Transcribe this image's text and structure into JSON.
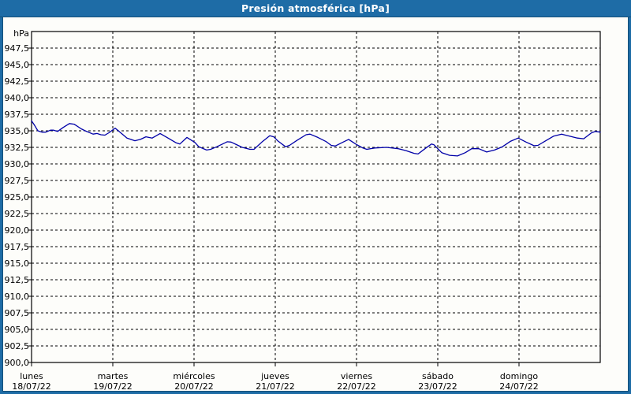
{
  "window": {
    "title": "Presión atmosférica [hPa]"
  },
  "colors": {
    "titlebar_bg": "#1E6CA6",
    "titlebar_text": "#FFFFFF",
    "panel_bg": "#FDFDFA",
    "grid_line": "#000000",
    "series_line": "#0000A8"
  },
  "chart_data": {
    "type": "line",
    "title": "Presión atmosférica [hPa]",
    "xlabel": "",
    "ylabel": "hPa",
    "unit_label": "hPa",
    "grid": "dashed",
    "legend": "none",
    "ylim": [
      900,
      950
    ],
    "y_tick_step": 2.5,
    "y_ticks": [
      {
        "label": "947,5",
        "value": 947.5
      },
      {
        "label": "945,0",
        "value": 945.0
      },
      {
        "label": "942,5",
        "value": 942.5
      },
      {
        "label": "940,0",
        "value": 940.0
      },
      {
        "label": "937,5",
        "value": 937.5
      },
      {
        "label": "935,0",
        "value": 935.0
      },
      {
        "label": "932,5",
        "value": 932.5
      },
      {
        "label": "930,0",
        "value": 930.0
      },
      {
        "label": "927,5",
        "value": 927.5
      },
      {
        "label": "925,0",
        "value": 925.0
      },
      {
        "label": "922,5",
        "value": 922.5
      },
      {
        "label": "920,0",
        "value": 920.0
      },
      {
        "label": "917,5",
        "value": 917.5
      },
      {
        "label": "915,0",
        "value": 915.0
      },
      {
        "label": "912,5",
        "value": 912.5
      },
      {
        "label": "910,0",
        "value": 910.0
      },
      {
        "label": "907,5",
        "value": 907.5
      },
      {
        "label": "905,0",
        "value": 905.0
      },
      {
        "label": "902,5",
        "value": 902.5
      },
      {
        "label": "900,0",
        "value": 900.0
      }
    ],
    "x_range_days": [
      0,
      7
    ],
    "x_ticks": [
      {
        "day": "lunes",
        "date": "18/07/22"
      },
      {
        "day": "martes",
        "date": "19/07/22"
      },
      {
        "day": "miércoles",
        "date": "20/07/22"
      },
      {
        "day": "jueves",
        "date": "21/07/22"
      },
      {
        "day": "viernes",
        "date": "22/07/22"
      },
      {
        "day": "sábado",
        "date": "23/07/22"
      },
      {
        "day": "domingo",
        "date": "24/07/22"
      }
    ],
    "series": [
      {
        "name": "Presión atmosférica",
        "color": "#0000A8",
        "points": [
          [
            0.0,
            936.5
          ],
          [
            0.039,
            935.8
          ],
          [
            0.078,
            935.0
          ],
          [
            0.13,
            934.8
          ],
          [
            0.175,
            934.8
          ],
          [
            0.233,
            935.1
          ],
          [
            0.272,
            935.1
          ],
          [
            0.32,
            934.9
          ],
          [
            0.388,
            935.5
          ],
          [
            0.466,
            936.1
          ],
          [
            0.524,
            936.0
          ],
          [
            0.612,
            935.3
          ],
          [
            0.66,
            935.0
          ],
          [
            0.757,
            934.5
          ],
          [
            0.806,
            934.6
          ],
          [
            0.854,
            934.4
          ],
          [
            0.903,
            934.35
          ],
          [
            0.951,
            934.7
          ],
          [
            1.029,
            935.4
          ],
          [
            1.117,
            934.5
          ],
          [
            1.175,
            933.9
          ],
          [
            1.272,
            933.5
          ],
          [
            1.34,
            933.7
          ],
          [
            1.408,
            934.1
          ],
          [
            1.485,
            933.9
          ],
          [
            1.583,
            934.6
          ],
          [
            1.68,
            933.9
          ],
          [
            1.777,
            933.2
          ],
          [
            1.825,
            933.0
          ],
          [
            1.913,
            934.0
          ],
          [
            2.01,
            933.25
          ],
          [
            2.058,
            932.6
          ],
          [
            2.155,
            932.1
          ],
          [
            2.204,
            932.2
          ],
          [
            2.282,
            932.6
          ],
          [
            2.408,
            933.35
          ],
          [
            2.456,
            933.3
          ],
          [
            2.524,
            932.9
          ],
          [
            2.592,
            932.5
          ],
          [
            2.689,
            932.2
          ],
          [
            2.738,
            932.2
          ],
          [
            2.835,
            933.3
          ],
          [
            2.932,
            934.25
          ],
          [
            2.981,
            934.1
          ],
          [
            3.029,
            933.5
          ],
          [
            3.126,
            932.6
          ],
          [
            3.175,
            932.8
          ],
          [
            3.272,
            933.6
          ],
          [
            3.379,
            934.4
          ],
          [
            3.427,
            934.5
          ],
          [
            3.524,
            934.0
          ],
          [
            3.621,
            933.4
          ],
          [
            3.689,
            932.8
          ],
          [
            3.738,
            932.7
          ],
          [
            3.835,
            933.3
          ],
          [
            3.903,
            933.7
          ],
          [
            3.99,
            933.0
          ],
          [
            4.078,
            932.4
          ],
          [
            4.126,
            932.2
          ],
          [
            4.223,
            932.4
          ],
          [
            4.369,
            932.5
          ],
          [
            4.515,
            932.3
          ],
          [
            4.612,
            932.0
          ],
          [
            4.709,
            931.6
          ],
          [
            4.757,
            931.5
          ],
          [
            4.854,
            932.4
          ],
          [
            4.922,
            933.0
          ],
          [
            4.951,
            932.9
          ],
          [
            5.049,
            931.7
          ],
          [
            5.146,
            931.3
          ],
          [
            5.243,
            931.2
          ],
          [
            5.34,
            931.7
          ],
          [
            5.417,
            932.3
          ],
          [
            5.505,
            932.3
          ],
          [
            5.602,
            931.8
          ],
          [
            5.699,
            932.1
          ],
          [
            5.796,
            932.6
          ],
          [
            5.893,
            933.4
          ],
          [
            5.99,
            933.9
          ],
          [
            6.087,
            933.3
          ],
          [
            6.184,
            932.75
          ],
          [
            6.233,
            932.8
          ],
          [
            6.33,
            933.5
          ],
          [
            6.427,
            934.2
          ],
          [
            6.524,
            934.5
          ],
          [
            6.621,
            934.2
          ],
          [
            6.718,
            933.9
          ],
          [
            6.796,
            933.8
          ],
          [
            6.893,
            934.7
          ],
          [
            6.942,
            934.9
          ],
          [
            7.0,
            934.8
          ]
        ]
      }
    ]
  }
}
